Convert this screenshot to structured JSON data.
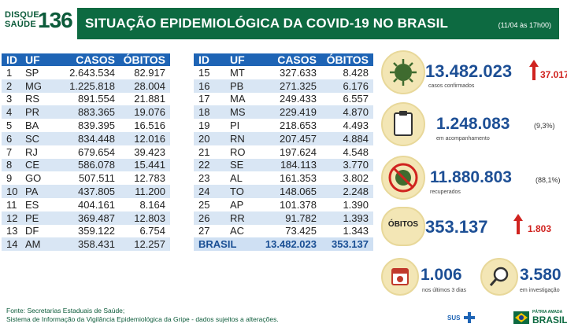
{
  "header": {
    "logo_line1": "DISQUE",
    "logo_line2": "SAÚDE",
    "logo_number": "136",
    "title": "SITUAÇÃO EPIDEMIOLÓGICA DA COVID-19 NO BRASIL",
    "date": "(11/04 às 17h00)"
  },
  "table": {
    "headers": [
      "ID",
      "UF",
      "CASOS",
      "ÓBITOS"
    ],
    "left_rows": [
      [
        "1",
        "SP",
        "2.643.534",
        "82.917"
      ],
      [
        "2",
        "MG",
        "1.225.818",
        "28.004"
      ],
      [
        "3",
        "RS",
        "891.554",
        "21.881"
      ],
      [
        "4",
        "PR",
        "883.365",
        "19.076"
      ],
      [
        "5",
        "BA",
        "839.395",
        "16.516"
      ],
      [
        "6",
        "SC",
        "834.448",
        "12.016"
      ],
      [
        "7",
        "RJ",
        "679.654",
        "39.423"
      ],
      [
        "8",
        "CE",
        "586.078",
        "15.441"
      ],
      [
        "9",
        "GO",
        "507.511",
        "12.783"
      ],
      [
        "10",
        "PA",
        "437.805",
        "11.200"
      ],
      [
        "11",
        "ES",
        "404.161",
        "8.164"
      ],
      [
        "12",
        "PE",
        "369.487",
        "12.803"
      ],
      [
        "13",
        "DF",
        "359.122",
        "6.754"
      ],
      [
        "14",
        "AM",
        "358.431",
        "12.257"
      ]
    ],
    "right_rows": [
      [
        "15",
        "MT",
        "327.633",
        "8.428"
      ],
      [
        "16",
        "PB",
        "271.325",
        "6.176"
      ],
      [
        "17",
        "MA",
        "249.433",
        "6.557"
      ],
      [
        "18",
        "MS",
        "229.419",
        "4.870"
      ],
      [
        "19",
        "PI",
        "218.653",
        "4.493"
      ],
      [
        "20",
        "RN",
        "207.457",
        "4.884"
      ],
      [
        "21",
        "RO",
        "197.624",
        "4.548"
      ],
      [
        "22",
        "SE",
        "184.113",
        "3.770"
      ],
      [
        "23",
        "AL",
        "161.353",
        "3.802"
      ],
      [
        "24",
        "TO",
        "148.065",
        "2.248"
      ],
      [
        "25",
        "AP",
        "101.378",
        "1.390"
      ],
      [
        "26",
        "RR",
        "91.782",
        "1.393"
      ],
      [
        "27",
        "AC",
        "73.425",
        "1.343"
      ]
    ],
    "total": {
      "label": "BRASIL",
      "casos": "13.482.023",
      "obitos": "353.137"
    }
  },
  "stats": {
    "confirmed": {
      "value": "13.482.023",
      "delta": "37.017",
      "label": "casos confirmados"
    },
    "followup": {
      "value": "1.248.083",
      "pct": "(9,3%)",
      "label": "em acompanhamento"
    },
    "recovered": {
      "value": "11.880.803",
      "pct": "(88,1%)",
      "label": "recuperados"
    },
    "deaths": {
      "badge": "ÓBITOS",
      "value": "353.137",
      "delta": "1.803"
    },
    "last3": {
      "value": "1.006",
      "label": "nos últimos 3 dias"
    },
    "investigation": {
      "value": "3.580",
      "label": "em investigação"
    }
  },
  "footer": {
    "line1": "Fonte: Secretarias Estaduais de Saúde;",
    "line2": "Sistema de Informação da Vigilância Epidemiológica da Gripe - dados sujeitos a alterações."
  },
  "logos": {
    "sus": "SUS",
    "brand_line1": "PÁTRIA AMADA",
    "brand_line2": "BRASIL"
  },
  "colors": {
    "green": "#0d6a41",
    "blue": "#1e64b5",
    "stripe": "#d9e6f4",
    "number": "#1d4f95",
    "red": "#d0231f"
  }
}
